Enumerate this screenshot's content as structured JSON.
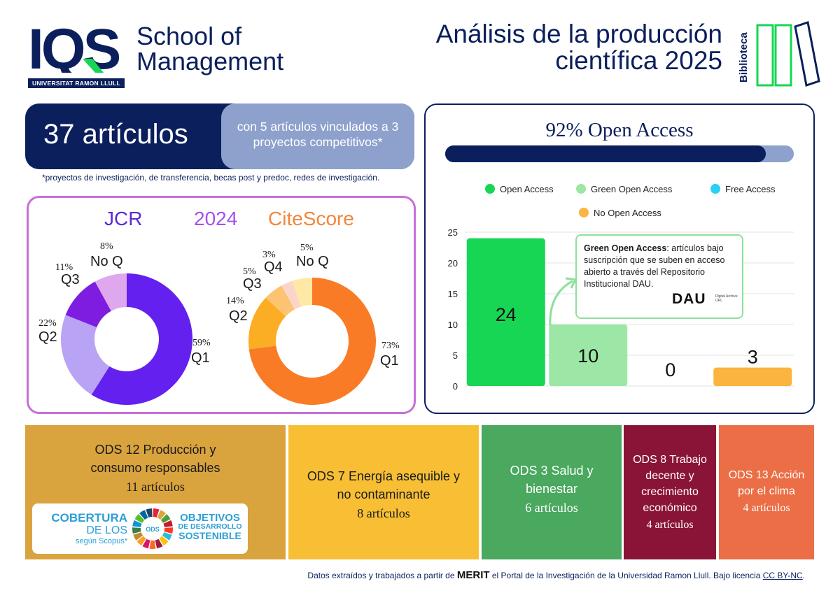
{
  "header": {
    "logo_text": "IQS",
    "school": "School of",
    "management": "Management",
    "university": "UNIVERSITAT RAMON LLULL",
    "title_line1": "Análisis de la producción",
    "title_line2": "científica 2025",
    "biblioteca": "Biblioteca"
  },
  "articles": {
    "count": "37 artículos",
    "linked": "con 5 artículos vinculados a 3 proyectos competitivos*",
    "note": "*proyectos de investigación, de transferencia, becas post y predoc, redes de investigación."
  },
  "quartiles": {
    "jcr_label": "JCR",
    "year_label": "2024",
    "citescore_label": "CiteScore"
  },
  "open_access": {
    "title": "92% Open Access",
    "percent": 92
  },
  "callout": {
    "bold": "Green Open Access",
    "text": ": artículos bajo suscripción que se suben en acceso abierto a través del Repositorio Institucional DAU.",
    "dau": "DAU",
    "dau_small": "Digital Archive URL"
  },
  "chart_data": [
    {
      "type": "pie",
      "subtitle": "JCR",
      "categories": [
        "Q1",
        "Q2",
        "Q3",
        "No Q"
      ],
      "values": [
        59,
        22,
        11,
        8
      ],
      "labels": [
        "59%",
        "22%",
        "11%",
        "8%"
      ],
      "colors": [
        "#6320ee",
        "#b9a3f5",
        "#7e1de0",
        "#dfa8ee"
      ]
    },
    {
      "type": "pie",
      "subtitle": "CiteScore",
      "categories": [
        "Q1",
        "Q2",
        "Q3",
        "Q4",
        "No Q"
      ],
      "values": [
        73,
        14,
        5,
        3,
        5
      ],
      "labels": [
        "73%",
        "14%",
        "5%",
        "3%",
        "5%"
      ],
      "colors": [
        "#fa7b26",
        "#fbae24",
        "#fbc372",
        "#fbd6c8",
        "#fde9a5"
      ]
    },
    {
      "type": "bar",
      "categories": [
        "Open Access",
        "Green Open Access",
        "Free Access",
        "No Open Access"
      ],
      "values": [
        24,
        10,
        0,
        3
      ],
      "colors": [
        "#17d654",
        "#9ce7a6",
        "#2ad0f6",
        "#fbb43f"
      ],
      "ylim": [
        0,
        25
      ],
      "yticks": [
        0,
        5,
        10,
        15,
        20,
        25
      ],
      "legend": "top"
    }
  ],
  "ods": {
    "ods12_line1": "ODS 12 Producción y",
    "ods12_line2": "consumo responsables",
    "ods12_count": "11 artículos",
    "ods7_line1": "ODS 7 Energía asequible y",
    "ods7_line2": "no contaminante",
    "ods7_count": "8 artículos",
    "ods3_line1": "ODS 3 Salud y",
    "ods3_line2": "bienestar",
    "ods3_count": "6 artículos",
    "ods8_line1": "ODS 8 Trabajo",
    "ods8_line2": "decente y",
    "ods8_line3": "crecimiento",
    "ods8_line4": "económico",
    "ods8_count": "4 artículos",
    "ods13_line1": "ODS 13 Acción",
    "ods13_line2": "por el clima",
    "ods13_count": "4 artículos",
    "badge_title": "COBERTURA",
    "badge_sub": "DE LOS",
    "badge_small": "según Scopus*",
    "badge_wheel": "ODS",
    "badge_obj1": "OBJETIVOS",
    "badge_obj2": "DE DESARROLLO",
    "badge_obj3": "SOSTENIBLE"
  },
  "footer": {
    "text1": "Datos extraídos y trabajados a partir de ",
    "merit": "MERIT",
    "text2": " el Portal de la Investigación de la Universidad Ramon Llull. Bajo licencia ",
    "license": "CC BY-NC",
    "text3": "."
  }
}
